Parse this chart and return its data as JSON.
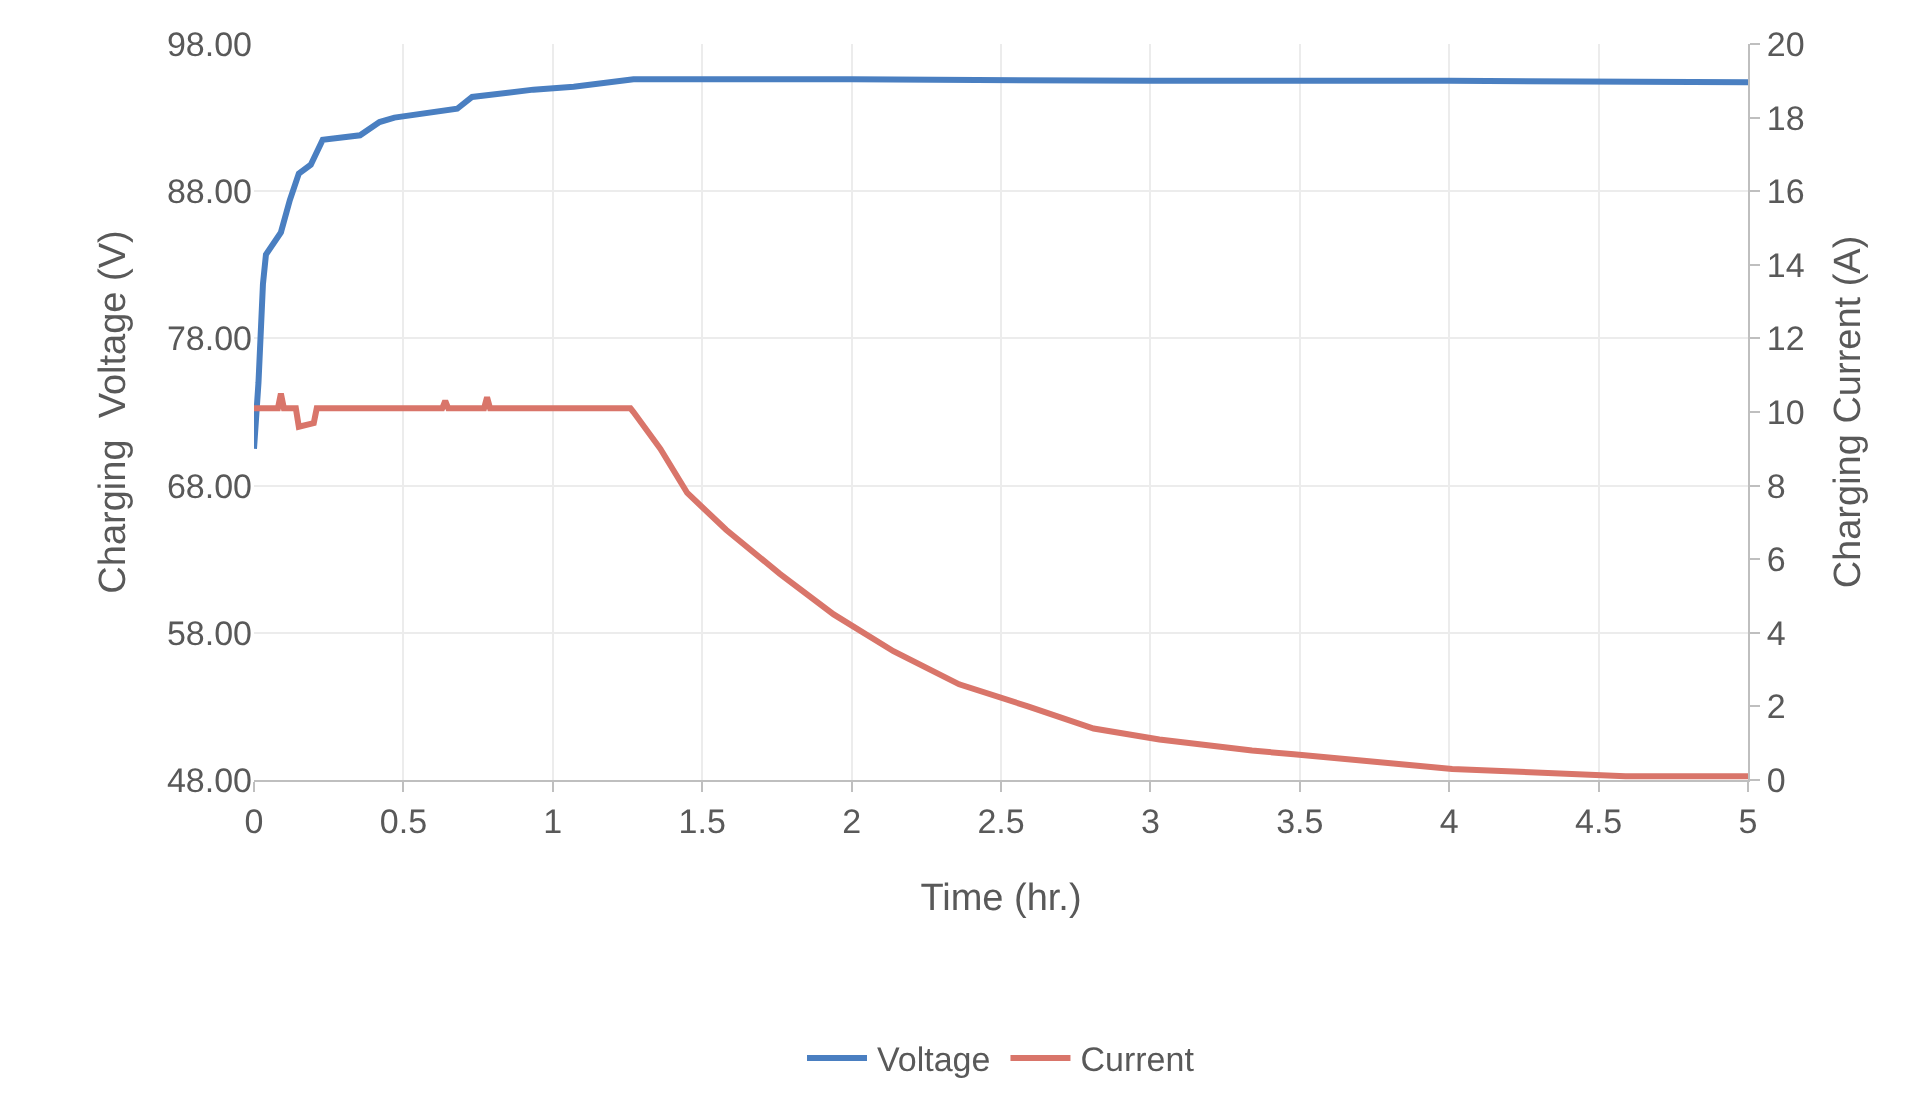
{
  "chart_data": {
    "type": "line",
    "xlabel": "Time (hr.)",
    "ylabel": "Charging  Voltage (V)",
    "y2label": "Charging Current (A)",
    "xlim": [
      0,
      5
    ],
    "xticks": [
      0,
      0.5,
      1,
      1.5,
      2,
      2.5,
      3,
      3.5,
      4,
      4.5,
      5
    ],
    "ylim": [
      48,
      98
    ],
    "yticks": [
      {
        "value": 48,
        "label": "48.00"
      },
      {
        "value": 58,
        "label": "58.00"
      },
      {
        "value": 68,
        "label": "68.00"
      },
      {
        "value": 78,
        "label": "78.00"
      },
      {
        "value": 88,
        "label": "88.00"
      },
      {
        "value": 98,
        "label": "98.00"
      }
    ],
    "y2lim": [
      0,
      20
    ],
    "y2ticks": [
      0,
      2,
      4,
      6,
      8,
      10,
      12,
      14,
      16,
      18,
      20
    ],
    "grid": true,
    "legend": "bottom",
    "marker": "none",
    "line_style": "solid",
    "series": [
      {
        "name": "Voltage",
        "color": "#4a7fc1",
        "x": [
          0,
          0.015,
          0.03,
          0.04,
          0.09,
          0.12,
          0.15,
          0.19,
          0.23,
          0.355,
          0.42,
          0.47,
          0.68,
          0.73,
          0.935,
          1.07,
          1.27,
          1.5,
          2,
          3,
          4,
          5
        ],
        "values": [
          70.5,
          75,
          81.7,
          83.7,
          85.2,
          87.4,
          89.2,
          89.8,
          91.5,
          91.8,
          92.7,
          93,
          93.6,
          94.4,
          94.9,
          95.1,
          95.6,
          95.6,
          95.6,
          95.5,
          95.5,
          95.4
        ]
      },
      {
        "name": "Current",
        "color": "#d9756a",
        "axis": "y2",
        "x": [
          0,
          0.08,
          0.09,
          0.1,
          0.14,
          0.15,
          0.2,
          0.21,
          0.63,
          0.64,
          0.65,
          0.77,
          0.78,
          0.79,
          1.26,
          1.27,
          1.36,
          1.45,
          1.58,
          1.76,
          1.94,
          2.14,
          2.36,
          2.59,
          2.81,
          3.03,
          3.34,
          3.48,
          4.01,
          4.59,
          5
        ],
        "values": [
          10.1,
          10.1,
          10.5,
          10.1,
          10.1,
          9.6,
          9.7,
          10.1,
          10.1,
          10.3,
          10.1,
          10.1,
          10.4,
          10.1,
          10.1,
          10.0,
          9.0,
          7.8,
          6.8,
          5.6,
          4.5,
          3.5,
          2.6,
          2.0,
          1.4,
          1.1,
          0.8,
          0.7,
          0.3,
          0.1,
          0.1
        ]
      }
    ]
  }
}
